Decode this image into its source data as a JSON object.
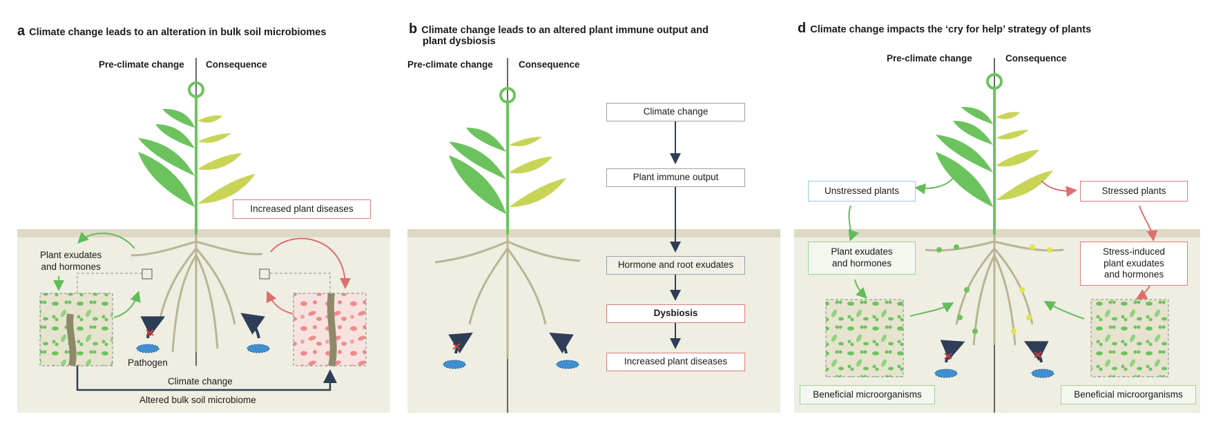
{
  "panel_a": {
    "letter": "a",
    "title": "Climate change leads to an alteration in bulk soil microbiomes",
    "col_left": "Pre-climate change",
    "col_right": "Consequence",
    "exudates_label": "Plant exudates\nand hormones",
    "diseases_label": "Increased plant diseases",
    "pathogen_label": "Pathogen",
    "climate_label": "Climate change",
    "altered_label": "Altered bulk soil microbiome"
  },
  "panel_b": {
    "letter": "b",
    "title_line1": "Climate change leads to an altered plant immune output and",
    "title_line2": "plant dysbiosis",
    "col_left": "Pre-climate change",
    "col_right": "Consequence",
    "flow": [
      "Climate change",
      "Plant immune output",
      "Hormone and root exudates",
      "Dysbiosis",
      "Increased plant diseases"
    ]
  },
  "panel_d": {
    "letter": "d",
    "title": "Climate change impacts the ‘cry for help’ strategy of plants",
    "col_left": "Pre-climate change",
    "col_right": "Consequence",
    "unstressed": "Unstressed plants",
    "stressed": "Stressed plants",
    "exudates_left": "Plant exudates\nand hormones",
    "exudates_right": "Stress-induced\nplant exudates\nand hormones",
    "beneficial_left": "Beneficial microorganisms",
    "beneficial_right": "Beneficial microorganisms"
  },
  "colors": {
    "soil": "#efeee2",
    "soil_top": "#ddd9c4",
    "root": "#b9b494",
    "leaf_green": "#6cc35e",
    "leaf_yellow": "#c9d457",
    "arrow_green": "#63bb5a",
    "arrow_red": "#de6e6e",
    "arrow_navy": "#2f3e57",
    "microbe_blue": "#3f8fd2",
    "box_red": "#e07a7a",
    "box_green": "#9fd39a"
  }
}
